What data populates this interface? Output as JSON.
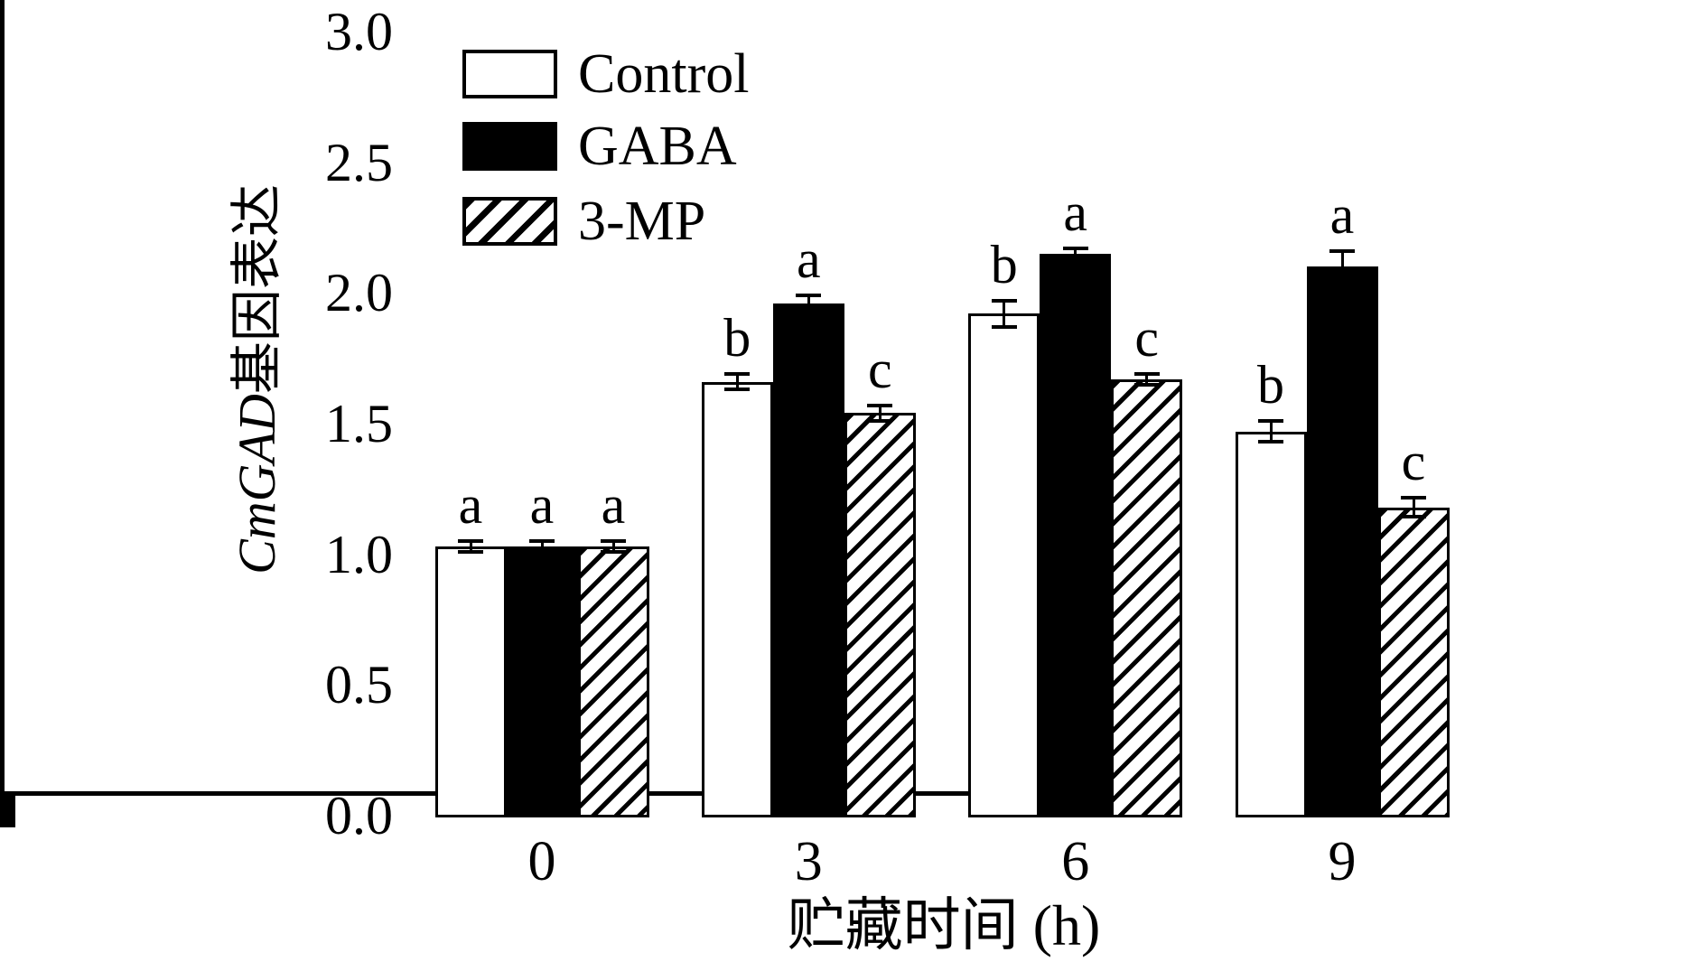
{
  "figure": {
    "ylabel_italic": "CmGAD",
    "ylabel_cjk": "基因表达",
    "xlabel": "贮藏时间 (h)"
  },
  "chart_data": {
    "type": "bar",
    "title": "",
    "xlabel": "贮藏时间 (h)",
    "ylabel": "CmGAD基因表达",
    "categories": [
      "0",
      "3",
      "6",
      "9"
    ],
    "series": [
      {
        "name": "Control",
        "style": "white",
        "values": [
          1.03,
          1.66,
          1.92,
          1.47
        ],
        "errors": [
          0.02,
          0.03,
          0.05,
          0.04
        ],
        "letters": [
          "a",
          "b",
          "b",
          "b"
        ]
      },
      {
        "name": "GABA",
        "style": "black",
        "values": [
          1.03,
          1.96,
          2.15,
          2.1
        ],
        "errors": [
          0.02,
          0.03,
          0.02,
          0.06
        ],
        "letters": [
          "a",
          "a",
          "a",
          "a"
        ]
      },
      {
        "name": "3-MP",
        "style": "hatch",
        "values": [
          1.03,
          1.54,
          1.67,
          1.18
        ],
        "errors": [
          0.02,
          0.03,
          0.02,
          0.035
        ],
        "letters": [
          "a",
          "c",
          "c",
          "c"
        ]
      }
    ],
    "ylim": [
      0.0,
      3.0
    ],
    "ytick_step": 0.5,
    "yticks": [
      "0.0",
      "0.5",
      "1.0",
      "1.5",
      "2.0",
      "2.5",
      "3.0"
    ],
    "grid": false,
    "legend_position": "upper-left-inside",
    "error_bars": true,
    "colors": {
      "axis": "#000000",
      "background": "#ffffff",
      "bar_fill": "#000000",
      "bar_outline": "#000000"
    }
  }
}
